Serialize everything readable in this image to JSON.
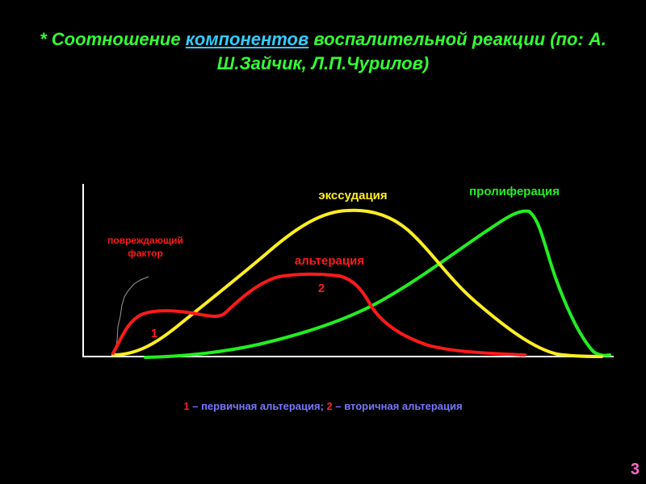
{
  "title": {
    "prefix": "* Соотношение ",
    "link": "компонентов",
    "suffix": " воспалительной реакции (по: А. Ш.Зайчик, Л.П.Чурилов)"
  },
  "diagram": {
    "damaging_factor_label_1": "повреждающий",
    "damaging_factor_label_2": "фактор",
    "exudation_label": "экссудация",
    "proliferation_label": "пролиферация",
    "alteration_label": "альтерация",
    "marker_1": "1",
    "marker_2": "2"
  },
  "legend": {
    "num1": "1",
    "text1": " – первичная альтерация; ",
    "num2": "2",
    "text2": " – вторичная альтерация"
  },
  "page_number": "3",
  "colors": {
    "background": "#000000",
    "title": "#33ff33",
    "exudation": "#ffee22",
    "proliferation": "#22ee22",
    "alteration": "#ff1a1a",
    "legend_text": "#7777ff",
    "page_number": "#ff66cc"
  }
}
